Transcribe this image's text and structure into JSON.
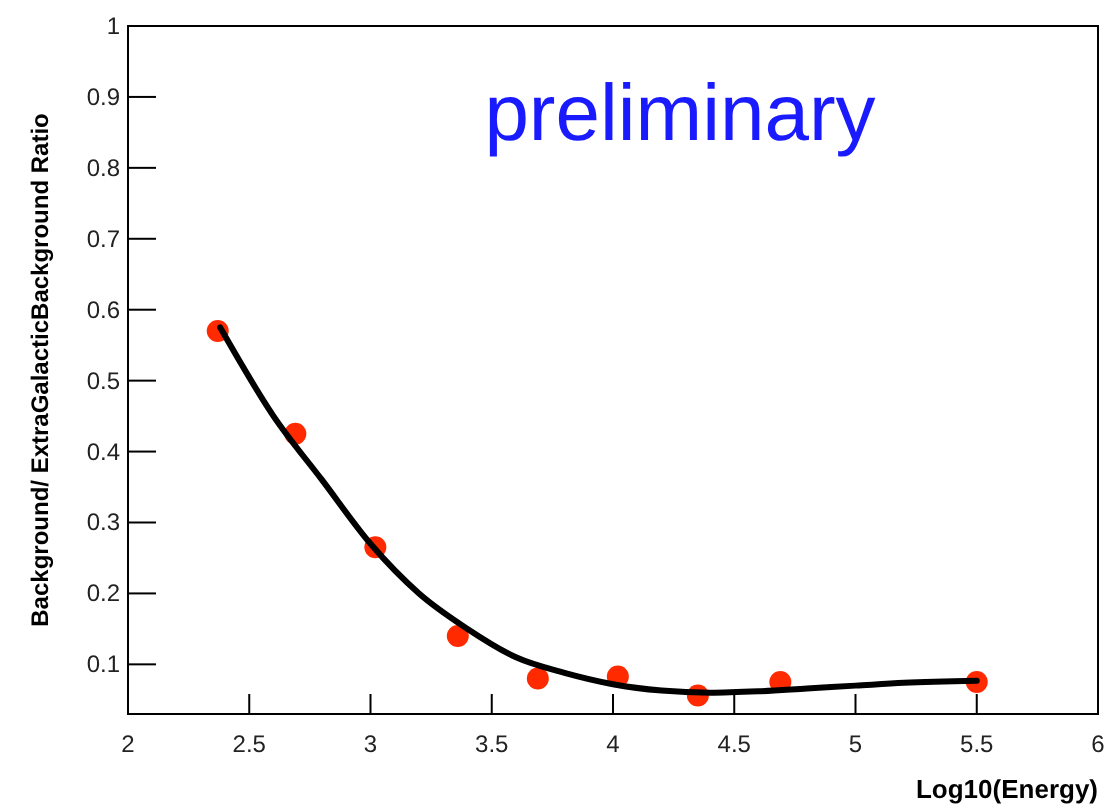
{
  "chart_data": {
    "type": "scatter",
    "xlabel": "Log10(Energy)",
    "ylabel": "Background/ ExtraGalacticBackground Ratio",
    "annotations": [
      "preliminary"
    ],
    "xlim": [
      2,
      6
    ],
    "xticks": [
      2,
      2.5,
      3,
      3.5,
      4,
      4.5,
      5,
      5.5,
      6
    ],
    "ylim": [
      0.03,
      1
    ],
    "yticks": [
      0.1,
      0.2,
      0.3,
      0.4,
      0.5,
      0.6,
      0.7,
      0.8,
      0.9,
      1
    ],
    "grid": false,
    "series": [
      {
        "color": "#ff2a00",
        "marker": "circle",
        "x": [
          2.37,
          2.69,
          3.02,
          3.36,
          3.69,
          4.02,
          4.35,
          4.69,
          5.5
        ],
        "values": [
          0.57,
          0.425,
          0.265,
          0.14,
          0.08,
          0.083,
          0.056,
          0.075,
          0.075
        ]
      },
      {
        "type": "line",
        "color": "#000000",
        "marker": "none",
        "line_style": "solid",
        "x": [
          2.38,
          2.6,
          2.8,
          3.0,
          3.2,
          3.4,
          3.6,
          3.8,
          4.0,
          4.2,
          4.4,
          4.6,
          4.8,
          5.0,
          5.2,
          5.5
        ],
        "values": [
          0.575,
          0.45,
          0.36,
          0.27,
          0.2,
          0.15,
          0.11,
          0.088,
          0.072,
          0.063,
          0.06,
          0.062,
          0.066,
          0.07,
          0.074,
          0.077
        ]
      }
    ]
  }
}
